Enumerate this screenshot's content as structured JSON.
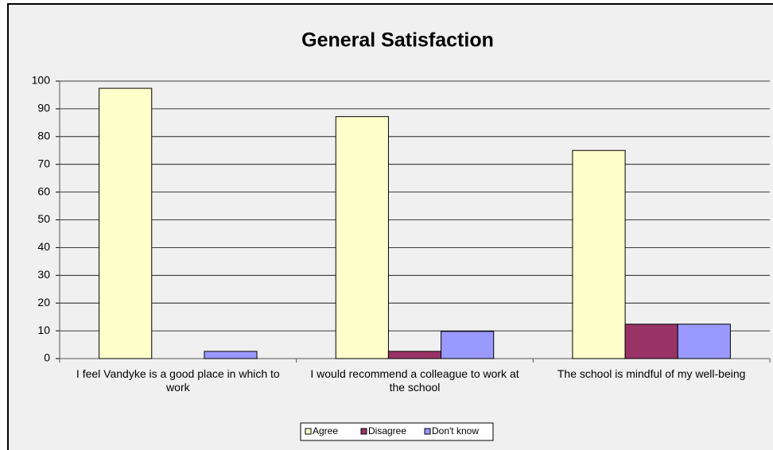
{
  "chart_data": {
    "type": "bar",
    "title": "General Satisfaction",
    "categories": [
      "I feel Vandyke is a good place in which to work",
      "I would recommend a colleague to work at the school",
      "The school is mindful of my well-being"
    ],
    "series": [
      {
        "name": "Agree",
        "color": "#ffffcc",
        "values": [
          97.4,
          87.2,
          75
        ]
      },
      {
        "name": "Disagree",
        "color": "#993366",
        "values": [
          0,
          2.6,
          12.4
        ]
      },
      {
        "name": "Don't know",
        "color": "#9999ff",
        "values": [
          2.6,
          9.8,
          12.4
        ]
      }
    ],
    "ylim": [
      0,
      100
    ],
    "yticks": [
      0,
      10,
      20,
      30,
      40,
      50,
      60,
      70,
      80,
      90,
      100
    ],
    "grid": true,
    "legend": "bottom"
  }
}
